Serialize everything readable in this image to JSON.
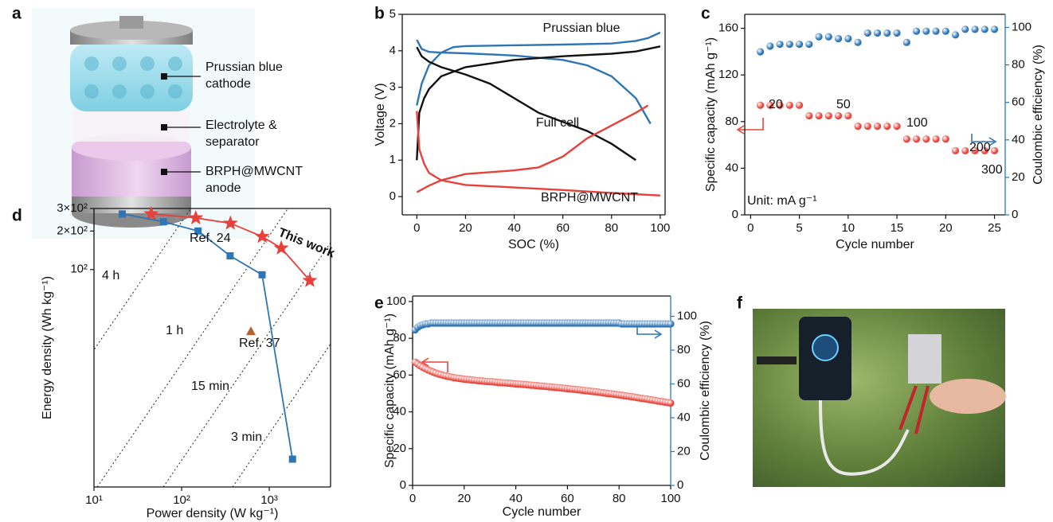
{
  "panel_labels": [
    "a",
    "b",
    "c",
    "d",
    "e",
    "f"
  ],
  "panel_a": {
    "labels": [
      "Prussian blue",
      "cathode",
      "Electrolyte &",
      "separator",
      "BRPH@MWCNT",
      "anode"
    ]
  },
  "chart_data": [
    {
      "type": "line",
      "xlabel": "SOC (%)",
      "ylabel": "Voltage (V)",
      "xlim": [
        -6,
        102
      ],
      "ylim": [
        -0.5,
        5
      ],
      "xticks": [
        0,
        20,
        40,
        60,
        80,
        100
      ],
      "yticks": [
        0,
        1,
        2,
        3,
        4,
        5
      ],
      "series": [
        {
          "name": "Prussian blue",
          "color": "#2e75b6",
          "x": [
            0,
            2,
            5,
            10,
            15,
            20,
            40,
            60,
            80,
            90,
            95,
            100
          ],
          "values": [
            2.5,
            3.1,
            3.6,
            3.95,
            4.1,
            4.13,
            4.15,
            4.17,
            4.2,
            4.27,
            4.35,
            4.5
          ]
        },
        {
          "color": "#2e75b6",
          "x": [
            0,
            2,
            5,
            10,
            20,
            40,
            60,
            70,
            80,
            90,
            96
          ],
          "values": [
            4.3,
            4.05,
            3.97,
            3.95,
            3.93,
            3.87,
            3.75,
            3.6,
            3.3,
            2.7,
            2.0
          ]
        },
        {
          "name": "Full cell",
          "color": "#111111",
          "x": [
            0,
            1,
            3,
            5,
            10,
            20,
            40,
            60,
            80,
            90,
            100
          ],
          "values": [
            1.0,
            2.3,
            2.7,
            2.95,
            3.3,
            3.55,
            3.75,
            3.85,
            3.92,
            3.98,
            4.12
          ]
        },
        {
          "color": "#111111",
          "x": [
            0,
            2,
            5,
            10,
            20,
            30,
            40,
            50,
            60,
            70,
            80,
            90
          ],
          "values": [
            4.1,
            3.85,
            3.7,
            3.55,
            3.35,
            3.1,
            2.7,
            2.3,
            2.05,
            1.8,
            1.45,
            1.0
          ]
        },
        {
          "name": "BRPH@MWCNT",
          "color": "#e8403a",
          "x": [
            0,
            5,
            10,
            20,
            40,
            50,
            60,
            70,
            80,
            90,
            95
          ],
          "values": [
            0.12,
            0.3,
            0.45,
            0.62,
            0.72,
            0.8,
            1.1,
            1.6,
            1.95,
            2.3,
            2.5
          ]
        },
        {
          "color": "#e8403a",
          "x": [
            0,
            1,
            3,
            5,
            10,
            20,
            40,
            60,
            80,
            100
          ],
          "values": [
            2.35,
            1.3,
            0.9,
            0.65,
            0.45,
            0.32,
            0.25,
            0.18,
            0.1,
            0.03
          ]
        }
      ]
    },
    {
      "type": "scatter",
      "xlabel": "Cycle number",
      "ylabel": "Specific capacity (mAh g⁻¹)",
      "y2label": "Coulombic efficiency (%)",
      "y2_color": "#2e75b6",
      "xlim": [
        -0.6,
        26.1
      ],
      "ylim": [
        0,
        172
      ],
      "y2lim": [
        0,
        107
      ],
      "xticks": [
        0,
        5,
        10,
        15,
        20,
        25
      ],
      "yticks": [
        0,
        40,
        80,
        120,
        160
      ],
      "y2ticks": [
        0,
        20,
        40,
        60,
        80,
        100
      ],
      "annotations": [
        "20",
        "50",
        "100",
        "200",
        "300",
        "Unit: mA g⁻¹"
      ],
      "series": [
        {
          "color": "#e8453c",
          "x": [
            1,
            2,
            3,
            4,
            5,
            6,
            7,
            8,
            9,
            10,
            11,
            12,
            13,
            14,
            15,
            16,
            17,
            18,
            19,
            20,
            21,
            22,
            23,
            24,
            25
          ],
          "values": [
            94,
            94,
            94,
            94,
            94,
            85,
            85,
            85,
            85,
            85,
            76,
            76,
            76,
            76,
            76,
            65,
            65,
            65,
            65,
            65,
            55,
            55,
            55,
            55,
            55
          ]
        },
        {
          "color": "#2e75b6",
          "axis": "y2",
          "x": [
            1,
            2,
            3,
            4,
            5,
            6,
            7,
            8,
            9,
            10,
            11,
            12,
            13,
            14,
            15,
            16,
            17,
            18,
            19,
            20,
            21,
            22,
            23,
            24,
            25
          ],
          "values": [
            87,
            90,
            91,
            91,
            91,
            91,
            95,
            95,
            94,
            94,
            92,
            97,
            97,
            97,
            97,
            92,
            98,
            98,
            98,
            98,
            96,
            99,
            99,
            99,
            99
          ]
        }
      ]
    },
    {
      "type": "line",
      "xlabel": "Power density (W kg⁻¹)",
      "ylabel": "Energy density (Wh kg⁻¹)",
      "xlog": true,
      "ylog": true,
      "xlim": [
        10,
        5000
      ],
      "ylim": [
        2,
        300
      ],
      "xticks": [
        {
          "value": 10,
          "label": "10¹"
        },
        {
          "value": 100,
          "label": "10²"
        },
        {
          "value": 1000,
          "label": "10³"
        }
      ],
      "yticks": [
        {
          "value": 100,
          "label": "10²"
        },
        {
          "value": 200,
          "label": "2×10²"
        },
        {
          "value": 300,
          "label": "3×10²"
        }
      ],
      "annotations": [
        "4 h",
        "1 h",
        "15 min",
        "3 min"
      ],
      "series": [
        {
          "name": "This work",
          "color": "#e8403a",
          "marker": "star",
          "x": [
            45,
            145,
            360,
            830,
            1370,
            2900
          ],
          "values": [
            272,
            253,
            230,
            181,
            147,
            82
          ]
        },
        {
          "name": "Ref. 24",
          "color": "#2e75b6",
          "marker": "square",
          "x": [
            21,
            62,
            154,
            357,
            828,
            1840
          ],
          "values": [
            272,
            236,
            200,
            128,
            91,
            3.3
          ]
        },
        {
          "name": "Ref. 37",
          "color": "#b5622c",
          "marker": "triangle",
          "line": false,
          "x": [
            617
          ],
          "values": [
            33
          ]
        }
      ]
    },
    {
      "type": "scatter",
      "xlabel": "Cycle number",
      "ylabel": "Specific capacity (mAh g⁻¹)",
      "y2label": "Coulombic efficiency (%)",
      "y2_color": "#2e75b6",
      "xlim": [
        0,
        100
      ],
      "ylim": [
        0,
        103
      ],
      "y2lim": [
        0,
        112
      ],
      "xticks": [
        0,
        20,
        40,
        60,
        80,
        100
      ],
      "yticks": [
        0,
        20,
        40,
        60,
        80,
        100
      ],
      "y2ticks": [
        0,
        20,
        40,
        60,
        80,
        100
      ],
      "series": [
        {
          "color": "#e8453c",
          "x": [
            1,
            2,
            3,
            4,
            5,
            6,
            7,
            8,
            9,
            10,
            11,
            12,
            13,
            14,
            15,
            16,
            17,
            18,
            19,
            20,
            21,
            22,
            23,
            24,
            25,
            26,
            27,
            28,
            29,
            30,
            31,
            32,
            33,
            34,
            35,
            36,
            37,
            38,
            39,
            40,
            41,
            42,
            43,
            44,
            45,
            46,
            47,
            48,
            49,
            50,
            51,
            52,
            53,
            54,
            55,
            56,
            57,
            58,
            59,
            60,
            61,
            62,
            63,
            64,
            65,
            66,
            67,
            68,
            69,
            70,
            71,
            72,
            73,
            74,
            75,
            76,
            77,
            78,
            79,
            80,
            81,
            82,
            83,
            84,
            85,
            86,
            87,
            88,
            89,
            90,
            91,
            92,
            93,
            94,
            95,
            96,
            97,
            98,
            99,
            100
          ],
          "values": [
            67,
            66,
            65,
            64.2,
            63.5,
            62.8,
            62.2,
            61.6,
            61.1,
            60.6,
            60.2,
            59.8,
            59.5,
            59.2,
            58.9,
            58.6,
            58.4,
            58.2,
            58,
            57.8,
            57.6,
            57.5,
            57.3,
            57.2,
            57,
            56.9,
            56.8,
            56.6,
            56.5,
            56.4,
            56.3,
            56.2,
            56,
            55.9,
            55.8,
            55.7,
            55.6,
            55.5,
            55.4,
            55.2,
            55.1,
            55,
            54.9,
            54.8,
            54.6,
            54.5,
            54.4,
            54.3,
            54.1,
            54,
            53.9,
            53.7,
            53.6,
            53.5,
            53.3,
            53.2,
            53.1,
            52.9,
            52.8,
            52.6,
            52.5,
            52.3,
            52.2,
            52,
            51.9,
            51.7,
            51.5,
            51.4,
            51.2,
            51,
            50.9,
            50.7,
            50.5,
            50.3,
            50.1,
            49.9,
            49.8,
            49.6,
            49.4,
            49.2,
            49,
            48.8,
            48.6,
            48.4,
            48.2,
            48,
            47.7,
            47.5,
            47.3,
            47.1,
            46.9,
            46.6,
            46.4,
            46.2,
            45.9,
            45.7,
            45.5,
            45.2,
            45,
            44.8
          ]
        },
        {
          "color": "#2e75b6",
          "axis": "y2",
          "x": [
            1,
            2,
            3,
            4,
            5,
            6,
            7,
            8,
            9,
            10,
            11,
            12,
            13,
            14,
            15,
            16,
            17,
            18,
            19,
            20,
            21,
            22,
            23,
            24,
            25,
            26,
            27,
            28,
            29,
            30,
            31,
            32,
            33,
            34,
            35,
            36,
            37,
            38,
            39,
            40,
            41,
            42,
            43,
            44,
            45,
            46,
            47,
            48,
            49,
            50,
            51,
            52,
            53,
            54,
            55,
            56,
            57,
            58,
            59,
            60,
            61,
            62,
            63,
            64,
            65,
            66,
            67,
            68,
            69,
            70,
            71,
            72,
            73,
            74,
            75,
            76,
            77,
            78,
            79,
            80,
            81,
            82,
            83,
            84,
            85,
            86,
            87,
            88,
            89,
            90,
            91,
            92,
            93,
            94,
            95,
            96,
            97,
            98,
            99,
            100
          ],
          "values": [
            92,
            93.5,
            94.5,
            95,
            95.5,
            95.5,
            96,
            96,
            96,
            96,
            96,
            96,
            96,
            96,
            96,
            96,
            96,
            96,
            96,
            96,
            96,
            96,
            96,
            96,
            96,
            96,
            96,
            96,
            96,
            96,
            96,
            96,
            96,
            96,
            96,
            96,
            96,
            96,
            96,
            96,
            96,
            96,
            96,
            96,
            96,
            96,
            96,
            96,
            96,
            96,
            96,
            96,
            96,
            96,
            96,
            96,
            96,
            96,
            96,
            96,
            96,
            96,
            96,
            96,
            96,
            96,
            96,
            96,
            96,
            96,
            96,
            96,
            96,
            96,
            96,
            96,
            96,
            96,
            96,
            96,
            95.5,
            95.5,
            95.5,
            95.5,
            95.5,
            95.5,
            95.5,
            95.5,
            95.5,
            95.5,
            95.5,
            95.5,
            95.5,
            95.5,
            95.5,
            95.5,
            95.5,
            95.5,
            95.5,
            95.5
          ]
        }
      ]
    }
  ]
}
